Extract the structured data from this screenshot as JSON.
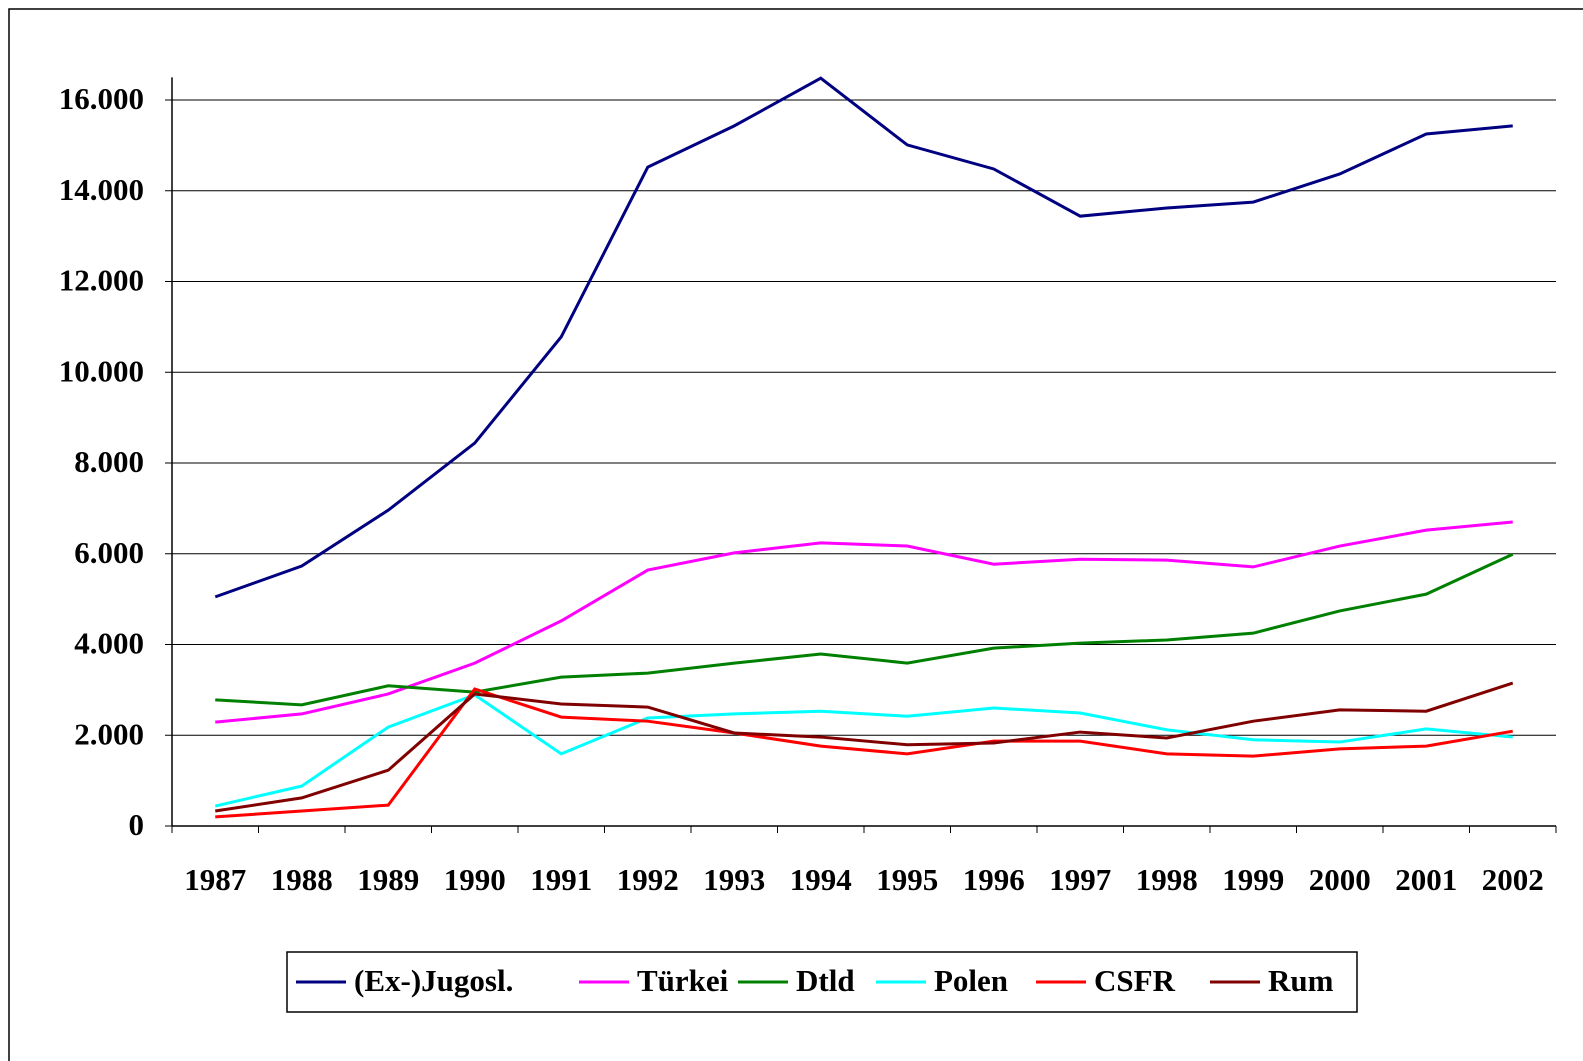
{
  "chart_data": {
    "type": "line",
    "categories": [
      "1987",
      "1988",
      "1989",
      "1990",
      "1991",
      "1992",
      "1993",
      "1994",
      "1995",
      "1996",
      "1997",
      "1998",
      "1999",
      "2000",
      "2001",
      "2002"
    ],
    "series": [
      {
        "name": "(Ex-)Jugosl.",
        "color": "#000080",
        "values": [
          5050,
          5730,
          6960,
          8440,
          10780,
          14520,
          15430,
          16480,
          15010,
          14480,
          13440,
          13620,
          13750,
          14370,
          15250,
          15430
        ]
      },
      {
        "name": "Türkei",
        "color": "#ff00ff",
        "values": [
          2290,
          2470,
          2910,
          3590,
          4520,
          5640,
          6020,
          6240,
          6170,
          5770,
          5880,
          5860,
          5710,
          6170,
          6520,
          6700
        ]
      },
      {
        "name": "Dtld",
        "color": "#008000",
        "values": [
          2780,
          2670,
          3090,
          2950,
          3280,
          3370,
          3590,
          3790,
          3590,
          3920,
          4030,
          4100,
          4250,
          4740,
          5110,
          5990
        ]
      },
      {
        "name": "Polen",
        "color": "#00ffff",
        "values": [
          440,
          880,
          2180,
          2890,
          1590,
          2380,
          2470,
          2530,
          2420,
          2600,
          2490,
          2120,
          1900,
          1850,
          2140,
          1960
        ]
      },
      {
        "name": "CSFR",
        "color": "#ff0000",
        "values": [
          200,
          330,
          460,
          3020,
          2400,
          2310,
          2050,
          1760,
          1590,
          1870,
          1870,
          1590,
          1540,
          1700,
          1760,
          2090
        ]
      },
      {
        "name": "Rum",
        "color": "#800000",
        "values": [
          330,
          620,
          1230,
          2910,
          2690,
          2620,
          2050,
          1960,
          1790,
          1830,
          2070,
          1940,
          2310,
          2560,
          2530,
          3150
        ]
      }
    ],
    "ylim": [
      0,
      16500
    ],
    "yticks": [
      0,
      {
        "value": 2000,
        "label": "2.000"
      },
      {
        "value": 4000,
        "label": "4.000"
      },
      {
        "value": 6000,
        "label": "6.000"
      },
      {
        "value": 8000,
        "label": "8.000"
      },
      {
        "value": 10000,
        "label": "10.000"
      },
      {
        "value": 12000,
        "label": "12.000"
      },
      {
        "value": 14000,
        "label": "14.000"
      },
      {
        "value": 16000,
        "label": "16.000"
      }
    ],
    "grid": true,
    "legend": "bottom"
  }
}
